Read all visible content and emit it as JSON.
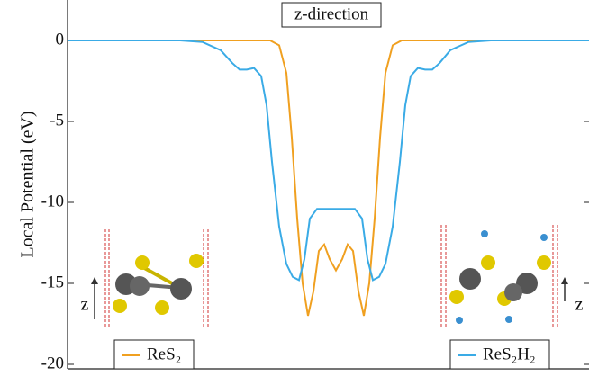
{
  "chart_data": {
    "type": "line",
    "y_label": "Local Potential (eV)",
    "annotation": "z-direction",
    "structure_labels": [
      "z",
      "z"
    ],
    "xlim": [
      0,
      579
    ],
    "ylim": [
      -20,
      2.5
    ],
    "yticks": [
      0,
      -5,
      -10,
      -15,
      -20
    ],
    "series": [
      {
        "name": "ReS₂",
        "color": "#f0a020",
        "x": [
          0,
          225,
          235,
          243,
          249,
          255,
          261,
          267,
          273,
          279,
          285,
          291,
          298,
          305,
          311,
          317,
          323,
          329,
          335,
          341,
          347,
          353,
          361,
          371,
          579
        ],
        "values": [
          0,
          0,
          -0.3,
          -2,
          -6,
          -11,
          -15,
          -17,
          -15.5,
          -13,
          -12.6,
          -13.5,
          -14.2,
          -13.5,
          -12.6,
          -13,
          -15.5,
          -17,
          -15,
          -11,
          -6,
          -2,
          -0.3,
          0,
          0
        ]
      },
      {
        "name": "ReS₂H₂",
        "color": "#3aabe6",
        "x": [
          0,
          125,
          150,
          170,
          183,
          191,
          199,
          207,
          215,
          221,
          227,
          235,
          243,
          250,
          257,
          263,
          269,
          277,
          298,
          319,
          327,
          333,
          339,
          346,
          353,
          361,
          369,
          375,
          381,
          389,
          397,
          405,
          413,
          425,
          445,
          470,
          579
        ],
        "values": [
          0,
          0,
          -0.1,
          -0.6,
          -1.4,
          -1.8,
          -1.8,
          -1.7,
          -2.2,
          -4,
          -7.5,
          -11.5,
          -13.8,
          -14.6,
          -14.8,
          -13.5,
          -11,
          -10.4,
          -10.4,
          -10.4,
          -11,
          -13.5,
          -14.8,
          -14.6,
          -13.8,
          -11.5,
          -7.5,
          -4,
          -2.2,
          -1.7,
          -1.8,
          -1.8,
          -1.4,
          -0.6,
          -0.1,
          0,
          0
        ]
      }
    ]
  }
}
